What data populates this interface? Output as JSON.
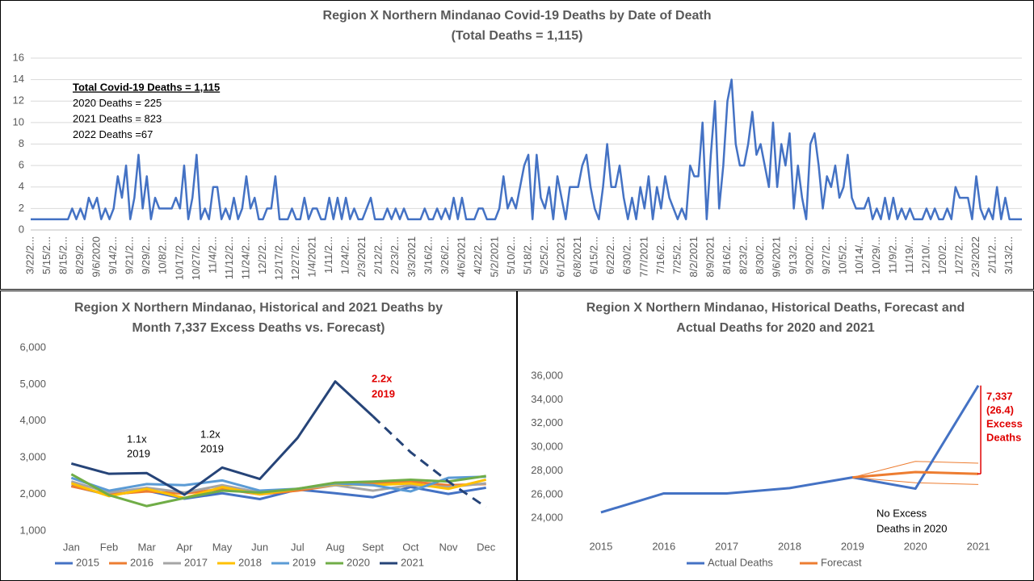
{
  "chart_data": [
    {
      "type": "line",
      "title": [
        "Region X Northern Mindanao  Covid-19 Deaths by Date of Death",
        "(Total Deaths = 1,115)"
      ],
      "annotations": [
        {
          "lines": [
            "Total Covid-19 Deaths = 1,115",
            "2020 Deaths = 225",
            "2021 Deaths = 823",
            "2022 Deaths =67"
          ],
          "color": "#000000"
        }
      ],
      "categories": [
        "3/22/2...",
        null,
        null,
        null,
        "5/15/2...",
        null,
        null,
        null,
        "8/15/2...",
        null,
        null,
        null,
        "8/29/2...",
        null,
        null,
        null,
        "9/6/2020",
        null,
        null,
        null,
        "9/14/2...",
        null,
        null,
        null,
        "9/21/2...",
        null,
        null,
        null,
        "9/29/2...",
        null,
        null,
        null,
        "10/8/2...",
        null,
        null,
        null,
        "10/17/2...",
        null,
        null,
        null,
        "10/27/2...",
        null,
        null,
        null,
        "11/4/2...",
        null,
        null,
        null,
        "11/12/2...",
        null,
        null,
        null,
        "11/24/2...",
        null,
        null,
        null,
        "12/2/2...",
        null,
        null,
        null,
        "12/17/2...",
        null,
        null,
        null,
        "12/27/2...",
        null,
        null,
        null,
        "1/4/2021",
        null,
        null,
        null,
        "1/11/2...",
        null,
        null,
        null,
        "1/24/2...",
        null,
        null,
        null,
        "2/3/2021",
        null,
        null,
        null,
        "2/12/2...",
        null,
        null,
        null,
        "2/23/2...",
        null,
        null,
        null,
        "3/3/2021",
        null,
        null,
        null,
        "3/16/2...",
        null,
        null,
        null,
        "3/26/2...",
        null,
        null,
        null,
        "4/6/2021",
        null,
        null,
        null,
        "4/22/2...",
        null,
        null,
        null,
        "5/2/2021",
        null,
        null,
        null,
        "5/10/2...",
        null,
        null,
        null,
        "5/18/2...",
        null,
        null,
        null,
        "5/25/2...",
        null,
        null,
        null,
        "6/1/2021",
        null,
        null,
        null,
        "6/8/2021",
        null,
        null,
        null,
        "6/15/2...",
        null,
        null,
        null,
        "6/22/2...",
        null,
        null,
        null,
        "6/30/2...",
        null,
        null,
        null,
        "7/7/2021",
        null,
        null,
        null,
        "7/16/2...",
        null,
        null,
        null,
        "7/25/2...",
        null,
        null,
        null,
        "8/2/2021",
        null,
        null,
        null,
        "8/9/2021",
        null,
        null,
        null,
        "8/16/2...",
        null,
        null,
        null,
        "8/23/2...",
        null,
        null,
        null,
        "8/30/2...",
        null,
        null,
        null,
        "9/6/2021",
        null,
        null,
        null,
        "9/13/2...",
        null,
        null,
        null,
        "9/20/2...",
        null,
        null,
        null,
        "9/27/2...",
        null,
        null,
        null,
        "10/5/2...",
        null,
        null,
        null,
        "10/14/...",
        null,
        null,
        null,
        "10/29/...",
        null,
        null,
        null,
        "11/9/2...",
        null,
        null,
        null,
        "11/19/...",
        null,
        null,
        null,
        "12/10/...",
        null,
        null,
        null,
        "1/20/2...",
        null,
        null,
        null,
        "1/27/2...",
        null,
        null,
        null,
        "2/3/2022",
        null,
        null,
        null,
        "2/11/2...",
        null,
        null,
        null,
        "3/13/2...",
        null,
        null,
        null
      ],
      "values": [
        1,
        1,
        1,
        1,
        1,
        1,
        1,
        1,
        1,
        1,
        2,
        1,
        2,
        1,
        3,
        2,
        3,
        1,
        2,
        1,
        2,
        5,
        3,
        6,
        1,
        3,
        7,
        2,
        5,
        1,
        3,
        2,
        2,
        2,
        2,
        3,
        2,
        6,
        1,
        3,
        7,
        1,
        2,
        1,
        4,
        4,
        1,
        2,
        1,
        3,
        1,
        2,
        5,
        2,
        3,
        1,
        1,
        2,
        2,
        5,
        1,
        1,
        1,
        2,
        1,
        1,
        3,
        1,
        2,
        2,
        1,
        1,
        3,
        1,
        3,
        1,
        3,
        1,
        2,
        1,
        1,
        2,
        3,
        1,
        1,
        1,
        2,
        1,
        2,
        1,
        2,
        1,
        1,
        1,
        1,
        2,
        1,
        1,
        2,
        1,
        2,
        1,
        3,
        1,
        3,
        1,
        1,
        1,
        2,
        2,
        1,
        1,
        1,
        2,
        5,
        2,
        3,
        2,
        4,
        6,
        7,
        1,
        7,
        3,
        2,
        4,
        1,
        5,
        3,
        1,
        4,
        4,
        4,
        6,
        7,
        4,
        2,
        1,
        4,
        8,
        4,
        4,
        6,
        3,
        1,
        3,
        1,
        4,
        2,
        5,
        1,
        4,
        2,
        5,
        3,
        2,
        1,
        2,
        1,
        6,
        5,
        5,
        10,
        1,
        7,
        12,
        2,
        6,
        12,
        14,
        8,
        6,
        6,
        8,
        11,
        7,
        8,
        6,
        4,
        10,
        4,
        8,
        6,
        9,
        2,
        6,
        3,
        1,
        8,
        9,
        6,
        2,
        5,
        4,
        6,
        3,
        4,
        7,
        3,
        2,
        2,
        2,
        3,
        1,
        2,
        1,
        3,
        1,
        3,
        1,
        2,
        1,
        2,
        1,
        1,
        1,
        2,
        1,
        2,
        1,
        1,
        2,
        1,
        4,
        3,
        3,
        3,
        1,
        5,
        2,
        1,
        2,
        1,
        4,
        1,
        3,
        1,
        1,
        1,
        1
      ],
      "color": "#4472c4",
      "ylim": [
        0,
        16
      ],
      "yticks": [
        0,
        2,
        4,
        6,
        8,
        10,
        12,
        14,
        16
      ],
      "grid": true
    },
    {
      "type": "line",
      "title": [
        "Region X Northern Mindanao, Historical and  2021 Deaths by",
        "Month 7,337 Excess Deaths vs. Forecast)"
      ],
      "annotations": [
        {
          "lines": [
            "1.1x",
            "2019"
          ],
          "color": "#000000"
        },
        {
          "lines": [
            "1.2x",
            "2019"
          ],
          "color": "#000000"
        },
        {
          "lines": [
            "2.2x",
            "2019"
          ],
          "color": "#e00000"
        }
      ],
      "categories": [
        "Jan",
        "Feb",
        "Mar",
        "Apr",
        "May",
        "Jun",
        "Jul",
        "Aug",
        "Sept",
        "Oct",
        "Nov",
        "Dec"
      ],
      "series": [
        {
          "name": "2015",
          "color": "#4472c4",
          "values": [
            2230,
            1980,
            2100,
            1880,
            2030,
            1870,
            2130,
            2030,
            1920,
            2200,
            2010,
            2180
          ]
        },
        {
          "name": "2016",
          "color": "#ed7d31",
          "values": [
            2220,
            2000,
            2080,
            2020,
            2150,
            2000,
            2100,
            2250,
            2300,
            2350,
            2250,
            2280
          ]
        },
        {
          "name": "2017",
          "color": "#a5a5a5",
          "values": [
            2350,
            2050,
            2180,
            2050,
            2250,
            2050,
            2150,
            2250,
            2100,
            2250,
            2200,
            2300
          ]
        },
        {
          "name": "2018",
          "color": "#ffc000",
          "values": [
            2300,
            1950,
            2150,
            1900,
            2200,
            2000,
            2150,
            2280,
            2250,
            2300,
            2150,
            2400
          ]
        },
        {
          "name": "2019",
          "color": "#5b9bd5",
          "values": [
            2450,
            2100,
            2280,
            2250,
            2380,
            2100,
            2150,
            2300,
            2250,
            2080,
            2450,
            2480
          ]
        },
        {
          "name": "2020",
          "color": "#70ad47",
          "values": [
            2550,
            1980,
            1680,
            1900,
            2100,
            2050,
            2150,
            2320,
            2350,
            2400,
            2350,
            2500
          ]
        },
        {
          "name": "2021",
          "color": "#264478",
          "values": [
            2840,
            2560,
            2580,
            1990,
            2730,
            2420,
            3540,
            5080,
            4130,
            3150,
            2350,
            1650
          ],
          "dash_from": 8
        }
      ],
      "ylim": [
        1000,
        6000
      ],
      "yticks": [
        {
          "value": 1000,
          "label": "1,000"
        },
        {
          "value": 2000,
          "label": "2,000"
        },
        {
          "value": 3000,
          "label": "3,000"
        },
        {
          "value": 4000,
          "label": "4,000"
        },
        {
          "value": 5000,
          "label": "5,000"
        },
        {
          "value": 6000,
          "label": "6,000"
        }
      ],
      "grid": false,
      "legend": "bottom"
    },
    {
      "type": "line",
      "title": [
        "Region X Northern Mindanao, Historical Deaths, Forecast and",
        "Actual Deaths for 2020 and 2021"
      ],
      "annotations": [
        {
          "lines": [
            "7,337",
            "(26.4)",
            "Excess",
            "Deaths"
          ],
          "color": "#e00000"
        },
        {
          "lines": [
            "No Excess",
            "Deaths in 2020"
          ],
          "color": "#000000"
        }
      ],
      "categories": [
        "2015",
        "2016",
        "2017",
        "2018",
        "2019",
        "2020",
        "2021"
      ],
      "series": [
        {
          "name": "Actual Deaths",
          "color": "#4472c4",
          "values": [
            24500,
            26100,
            26100,
            26550,
            27450,
            26500,
            35200
          ]
        },
        {
          "name": "Forecast",
          "color": "#ed7d31",
          "values": [
            null,
            null,
            null,
            null,
            27450,
            27900,
            27750
          ]
        }
      ],
      "forecast_upper": [
        null,
        null,
        null,
        null,
        27450,
        28800,
        28650
      ],
      "forecast_lower": [
        null,
        null,
        null,
        null,
        27450,
        27000,
        26850
      ],
      "ylim": [
        23000,
        36000
      ],
      "yticks": [
        {
          "value": 24000,
          "label": "24,000"
        },
        {
          "value": 26000,
          "label": "26,000"
        },
        {
          "value": 28000,
          "label": "28,000"
        },
        {
          "value": 30000,
          "label": "30,000"
        },
        {
          "value": 32000,
          "label": "32,000"
        },
        {
          "value": 34000,
          "label": "34,000"
        },
        {
          "value": 36000,
          "label": "36,000"
        }
      ],
      "grid": false,
      "legend": "bottom"
    }
  ]
}
